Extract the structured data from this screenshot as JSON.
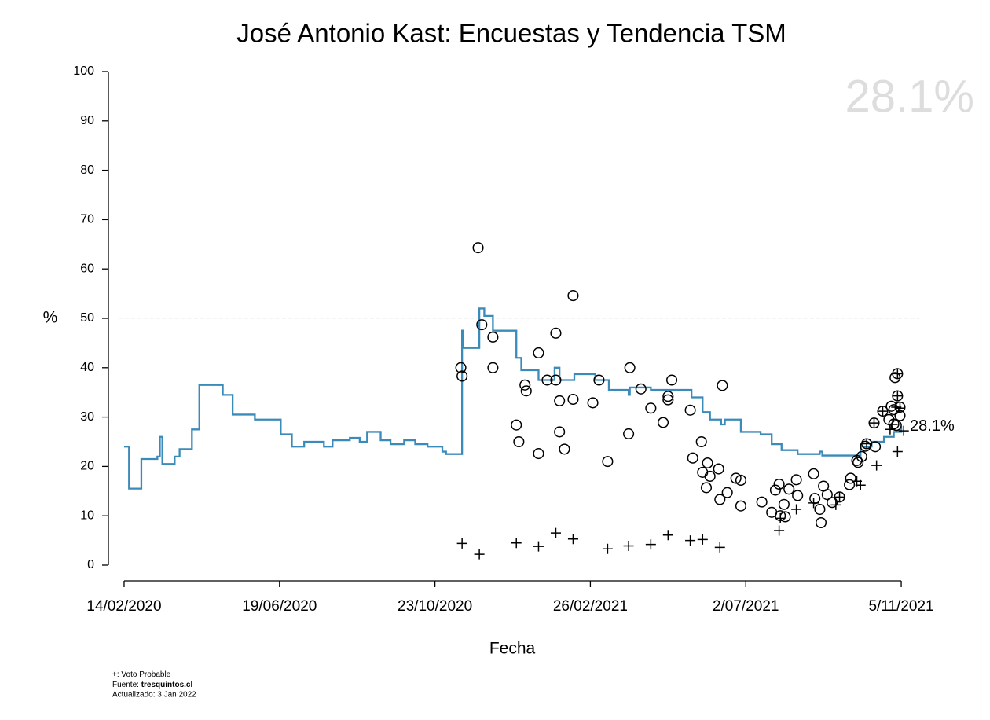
{
  "chart_data": {
    "type": "line",
    "title": "José Antonio Kast: Encuestas y Tendencia TSM",
    "x_label": "Fecha",
    "y_label": "%",
    "watermark": "28.1%",
    "end_label": "28.1%",
    "hline": 50,
    "xlim": [
      "2020-02-03",
      "2021-11-20"
    ],
    "ylim": [
      0,
      100
    ],
    "xticks": [
      {
        "value": "2020-02-14",
        "label": "14/02/2020"
      },
      {
        "value": "2020-06-19",
        "label": "19/06/2020"
      },
      {
        "value": "2020-10-23",
        "label": "23/10/2020"
      },
      {
        "value": "2021-02-26",
        "label": "26/02/2021"
      },
      {
        "value": "2021-07-02",
        "label": "2/07/2021"
      },
      {
        "value": "2021-11-05",
        "label": "5/11/2021"
      }
    ],
    "yticks": [
      0,
      10,
      20,
      30,
      40,
      50,
      60,
      70,
      80,
      90,
      100
    ],
    "series": [
      {
        "marker": "step",
        "color": "#3b8bba",
        "x": [
          "2020-02-14",
          "2020-02-18",
          "2020-02-28",
          "2020-03-12",
          "2020-03-14",
          "2020-03-16",
          "2020-03-26",
          "2020-03-30",
          "2020-04-09",
          "2020-04-15",
          "2020-05-04",
          "2020-05-12",
          "2020-05-30",
          "2020-06-20",
          "2020-06-29",
          "2020-07-09",
          "2020-07-25",
          "2020-08-01",
          "2020-08-15",
          "2020-08-23",
          "2020-08-29",
          "2020-09-09",
          "2020-09-17",
          "2020-09-28",
          "2020-10-07",
          "2020-10-17",
          "2020-10-29",
          "2020-11-01",
          "2020-11-14",
          "2020-11-15",
          "2020-11-28",
          "2020-12-02",
          "2020-12-09",
          "2020-12-28",
          "2021-01-01",
          "2021-01-15",
          "2021-01-28",
          "2021-02-01",
          "2021-02-13",
          "2021-03-02",
          "2021-03-13",
          "2021-03-29",
          "2021-03-30",
          "2021-04-16",
          "2021-05-16",
          "2021-05-19",
          "2021-05-28",
          "2021-06-03",
          "2021-06-12",
          "2021-06-15",
          "2021-06-28",
          "2021-07-14",
          "2021-07-23",
          "2021-07-31",
          "2021-08-13",
          "2021-08-31",
          "2021-09-02",
          "2021-09-28",
          "2021-10-03",
          "2021-10-12",
          "2021-10-22",
          "2021-10-30",
          "2021-11-05"
        ],
        "values": [
          24,
          15.5,
          21.5,
          22,
          26,
          20.5,
          22,
          23.5,
          27.5,
          36.5,
          34.5,
          30.5,
          29.5,
          26.5,
          24,
          25,
          24,
          25.3,
          25.8,
          25,
          27,
          25.3,
          24.5,
          25.3,
          24.5,
          24,
          23,
          22.5,
          47.5,
          44,
          52,
          50.5,
          47.5,
          42,
          39.5,
          37.5,
          40,
          37.5,
          38.7,
          37.5,
          35.5,
          34.5,
          36,
          35.5,
          35.5,
          34,
          31,
          29.5,
          28.5,
          29.5,
          27,
          26.5,
          24.5,
          23.3,
          22.5,
          23,
          22.2,
          22.2,
          24,
          25,
          26,
          27,
          28.1
        ]
      },
      {
        "marker": "circle",
        "color": "#000000",
        "x": [
          "2020-11-13",
          "2020-11-14",
          "2020-11-27",
          "2020-11-30",
          "2020-12-09",
          "2020-12-09",
          "2020-12-28",
          "2020-12-30",
          "2021-01-04",
          "2021-01-05",
          "2021-01-15",
          "2021-01-15",
          "2021-01-22",
          "2021-01-29",
          "2021-01-29",
          "2021-02-01",
          "2021-02-01",
          "2021-02-05",
          "2021-02-12",
          "2021-02-12",
          "2021-02-28",
          "2021-03-05",
          "2021-03-12",
          "2021-03-29",
          "2021-03-30",
          "2021-04-08",
          "2021-04-16",
          "2021-04-26",
          "2021-04-30",
          "2021-04-30",
          "2021-05-03",
          "2021-05-18",
          "2021-05-20",
          "2021-05-27",
          "2021-05-28",
          "2021-05-31",
          "2021-06-01",
          "2021-06-03",
          "2021-06-10",
          "2021-06-11",
          "2021-06-13",
          "2021-06-17",
          "2021-06-24",
          "2021-06-28",
          "2021-06-28",
          "2021-07-15",
          "2021-07-23",
          "2021-07-26",
          "2021-07-29",
          "2021-07-30",
          "2021-08-02",
          "2021-08-03",
          "2021-08-06",
          "2021-08-12",
          "2021-08-13",
          "2021-08-26",
          "2021-08-27",
          "2021-08-31",
          "2021-09-01",
          "2021-09-03",
          "2021-09-06",
          "2021-09-10",
          "2021-09-16",
          "2021-09-24",
          "2021-09-25",
          "2021-09-30",
          "2021-10-01",
          "2021-10-04",
          "2021-10-07",
          "2021-10-08",
          "2021-10-14",
          "2021-10-15",
          "2021-10-21",
          "2021-10-26",
          "2021-10-28",
          "2021-10-30",
          "2021-10-30",
          "2021-10-31",
          "2021-11-01",
          "2021-11-02",
          "2021-11-02",
          "2021-11-04",
          "2021-11-04"
        ],
        "values": [
          40,
          38.3,
          64.3,
          48.7,
          46.2,
          40,
          28.4,
          25,
          36.5,
          35.3,
          43,
          22.6,
          37.5,
          47,
          37.5,
          33.3,
          27,
          23.5,
          33.6,
          54.6,
          32.9,
          37.5,
          21,
          26.6,
          40,
          35.7,
          31.8,
          28.9,
          33.5,
          34.2,
          37.5,
          31.4,
          21.7,
          25,
          18.8,
          15.7,
          20.7,
          18,
          19.5,
          13.3,
          36.4,
          14.7,
          17.6,
          17.2,
          12,
          12.8,
          10.7,
          15.2,
          16.4,
          10,
          12.3,
          9.8,
          15.4,
          17.3,
          14.1,
          18.5,
          13.5,
          11.3,
          8.6,
          16,
          14.3,
          12.7,
          13.8,
          16.3,
          17.6,
          21.2,
          20.8,
          22,
          24.1,
          24.6,
          28.8,
          24,
          31.2,
          29.5,
          32.2,
          31.5,
          28.6,
          38,
          28.3,
          34.3,
          38.8,
          32,
          30.3
        ]
      },
      {
        "marker": "plus",
        "color": "#000000",
        "x": [
          "2020-11-14",
          "2020-11-28",
          "2020-12-28",
          "2021-01-15",
          "2021-01-29",
          "2021-02-12",
          "2021-03-12",
          "2021-03-29",
          "2021-04-16",
          "2021-04-30",
          "2021-05-18",
          "2021-05-28",
          "2021-06-11",
          "2021-07-29",
          "2021-07-30",
          "2021-08-12",
          "2021-08-26",
          "2021-09-13",
          "2021-09-16",
          "2021-09-30",
          "2021-10-03",
          "2021-10-08",
          "2021-10-14",
          "2021-10-16",
          "2021-10-21",
          "2021-10-27",
          "2021-10-29",
          "2021-11-01",
          "2021-11-02",
          "2021-11-02",
          "2021-11-02",
          "2021-11-04",
          "2021-11-07"
        ],
        "values": [
          4.4,
          2.2,
          4.5,
          3.8,
          6.5,
          5.3,
          3.3,
          3.9,
          4.2,
          6.1,
          5,
          5.2,
          3.6,
          7,
          9.5,
          11.3,
          12.6,
          12.2,
          13.8,
          17,
          16.2,
          24.6,
          28.8,
          20.2,
          31.2,
          27.5,
          28.5,
          32,
          34.3,
          38.8,
          23,
          31.8,
          27.2
        ]
      }
    ],
    "footer": {
      "symbol": "+",
      "symbol_text": ": Voto Probable",
      "source_label": "Fuente: ",
      "source": "tresquintos.cl",
      "updated": "Actualizado: 3 Jan 2022"
    }
  }
}
